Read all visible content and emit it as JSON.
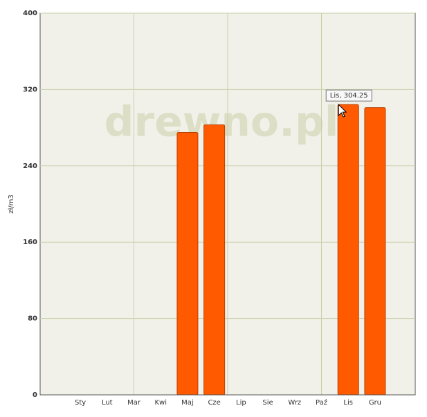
{
  "chart_data": {
    "type": "bar",
    "y_label": "zł/m3",
    "watermark": "drewno.pl",
    "categories": [
      null,
      "Sty",
      "Lut",
      "Mar",
      "Kwi",
      "Maj",
      "Cze",
      "Lip",
      "Sie",
      "Wrz",
      "Paź",
      "Lis",
      "Gru",
      null
    ],
    "values": [
      null,
      null,
      null,
      null,
      null,
      275,
      283,
      null,
      null,
      null,
      null,
      304.25,
      301,
      null
    ],
    "color": "#ff5a00",
    "ylim": [
      0,
      400
    ],
    "yticks": [
      0,
      80,
      160,
      240,
      320,
      400
    ],
    "grid": true,
    "annotation": "Lis, 304.25"
  }
}
